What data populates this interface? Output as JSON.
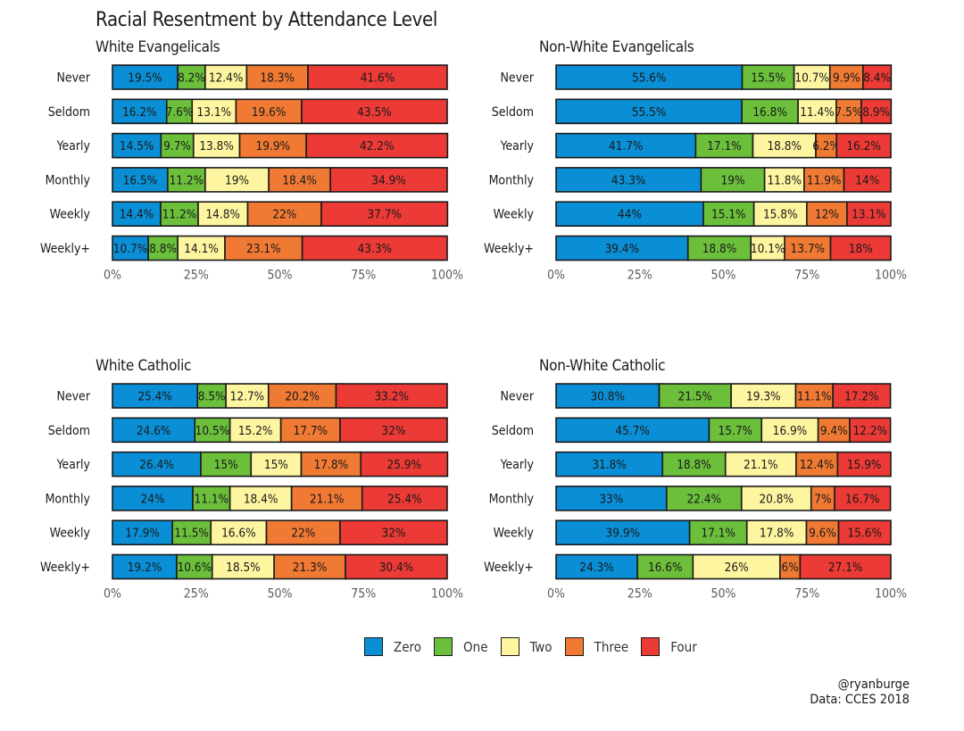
{
  "title": "Racial Resentment by Attendance Level",
  "colors": {
    "Zero": "#0A8FD6",
    "One": "#6BBF3B",
    "Two": "#FDF5A0",
    "Three": "#F07A33",
    "Four": "#EC3A36"
  },
  "legend": [
    {
      "label": "Zero",
      "color": "#0A8FD6"
    },
    {
      "label": "One",
      "color": "#6BBF3B"
    },
    {
      "label": "Two",
      "color": "#FDF5A0"
    },
    {
      "label": "Three",
      "color": "#F07A33"
    },
    {
      "label": "Four",
      "color": "#EC3A36"
    }
  ],
  "credit": {
    "handle": "@ryanburge",
    "source": "Data: CCES 2018"
  },
  "chart_data": [
    {
      "type": "bar",
      "title": "White Evangelicals",
      "orientation": "horizontal-stacked",
      "xlim": [
        0,
        100
      ],
      "xticks": [
        "0%",
        "25%",
        "50%",
        "75%",
        "100%"
      ],
      "categories": [
        "Never",
        "Seldom",
        "Yearly",
        "Monthly",
        "Weekly",
        "Weekly+"
      ],
      "series": [
        {
          "name": "Zero",
          "values": [
            19.5,
            16.2,
            14.5,
            16.5,
            14.4,
            10.7
          ],
          "labels": [
            "19.5%",
            "16.2%",
            "14.5%",
            "16.5%",
            "14.4%",
            "10.7%"
          ]
        },
        {
          "name": "One",
          "values": [
            8.2,
            7.6,
            9.7,
            11.2,
            11.2,
            8.8
          ],
          "labels": [
            "8.2%",
            "7.6%",
            "9.7%",
            "11.2%",
            "11.2%",
            "8.8%"
          ]
        },
        {
          "name": "Two",
          "values": [
            12.4,
            13.1,
            13.8,
            19,
            14.8,
            14.1
          ],
          "labels": [
            "12.4%",
            "13.1%",
            "13.8%",
            "19%",
            "14.8%",
            "14.1%"
          ]
        },
        {
          "name": "Three",
          "values": [
            18.3,
            19.6,
            19.9,
            18.4,
            22,
            23.1
          ],
          "labels": [
            "18.3%",
            "19.6%",
            "19.9%",
            "18.4%",
            "22%",
            "23.1%"
          ]
        },
        {
          "name": "Four",
          "values": [
            41.6,
            43.5,
            42.2,
            34.9,
            37.7,
            43.3
          ],
          "labels": [
            "41.6%",
            "43.5%",
            "42.2%",
            "34.9%",
            "37.7%",
            "43.3%"
          ]
        }
      ]
    },
    {
      "type": "bar",
      "title": "Non-White Evangelicals",
      "orientation": "horizontal-stacked",
      "xlim": [
        0,
        100
      ],
      "xticks": [
        "0%",
        "25%",
        "50%",
        "75%",
        "100%"
      ],
      "categories": [
        "Never",
        "Seldom",
        "Yearly",
        "Monthly",
        "Weekly",
        "Weekly+"
      ],
      "series": [
        {
          "name": "Zero",
          "values": [
            55.6,
            55.5,
            41.7,
            43.3,
            44,
            39.4
          ],
          "labels": [
            "55.6%",
            "55.5%",
            "41.7%",
            "43.3%",
            "44%",
            "39.4%"
          ]
        },
        {
          "name": "One",
          "values": [
            15.5,
            16.8,
            17.1,
            19,
            15.1,
            18.8
          ],
          "labels": [
            "15.5%",
            "16.8%",
            "17.1%",
            "19%",
            "15.1%",
            "18.8%"
          ]
        },
        {
          "name": "Two",
          "values": [
            10.7,
            11.4,
            18.8,
            11.8,
            15.8,
            10.1
          ],
          "labels": [
            "10.7%",
            "11.4%",
            "18.8%",
            "11.8%",
            "15.8%",
            "10.1%"
          ]
        },
        {
          "name": "Three",
          "values": [
            9.9,
            7.5,
            6.2,
            11.9,
            12,
            13.7
          ],
          "labels": [
            "9.9%",
            "7.5%",
            "6.2%",
            "11.9%",
            "12%",
            "13.7%"
          ]
        },
        {
          "name": "Four",
          "values": [
            8.4,
            8.9,
            16.2,
            14,
            13.1,
            18
          ],
          "labels": [
            "8.4%",
            "8.9%",
            "16.2%",
            "14%",
            "13.1%",
            "18%"
          ]
        }
      ]
    },
    {
      "type": "bar",
      "title": "White Catholic",
      "orientation": "horizontal-stacked",
      "xlim": [
        0,
        100
      ],
      "xticks": [
        "0%",
        "25%",
        "50%",
        "75%",
        "100%"
      ],
      "categories": [
        "Never",
        "Seldom",
        "Yearly",
        "Monthly",
        "Weekly",
        "Weekly+"
      ],
      "series": [
        {
          "name": "Zero",
          "values": [
            25.4,
            24.6,
            26.4,
            24,
            17.9,
            19.2
          ],
          "labels": [
            "25.4%",
            "24.6%",
            "26.4%",
            "24%",
            "17.9%",
            "19.2%"
          ]
        },
        {
          "name": "One",
          "values": [
            8.5,
            10.5,
            15,
            11.1,
            11.5,
            10.6
          ],
          "labels": [
            "8.5%",
            "10.5%",
            "15%",
            "11.1%",
            "11.5%",
            "10.6%"
          ]
        },
        {
          "name": "Two",
          "values": [
            12.7,
            15.2,
            15,
            18.4,
            16.6,
            18.5
          ],
          "labels": [
            "12.7%",
            "15.2%",
            "15%",
            "18.4%",
            "16.6%",
            "18.5%"
          ]
        },
        {
          "name": "Three",
          "values": [
            20.2,
            17.7,
            17.8,
            21.1,
            22,
            21.3
          ],
          "labels": [
            "20.2%",
            "17.7%",
            "17.8%",
            "21.1%",
            "22%",
            "21.3%"
          ]
        },
        {
          "name": "Four",
          "values": [
            33.2,
            32,
            25.9,
            25.4,
            32,
            30.4
          ],
          "labels": [
            "33.2%",
            "32%",
            "25.9%",
            "25.4%",
            "32%",
            "30.4%"
          ]
        }
      ]
    },
    {
      "type": "bar",
      "title": "Non-White Catholic",
      "orientation": "horizontal-stacked",
      "xlim": [
        0,
        100
      ],
      "xticks": [
        "0%",
        "25%",
        "50%",
        "75%",
        "100%"
      ],
      "categories": [
        "Never",
        "Seldom",
        "Yearly",
        "Monthly",
        "Weekly",
        "Weekly+"
      ],
      "series": [
        {
          "name": "Zero",
          "values": [
            30.8,
            45.7,
            31.8,
            33,
            39.9,
            24.3
          ],
          "labels": [
            "30.8%",
            "45.7%",
            "31.8%",
            "33%",
            "39.9%",
            "24.3%"
          ]
        },
        {
          "name": "One",
          "values": [
            21.5,
            15.7,
            18.8,
            22.4,
            17.1,
            16.6
          ],
          "labels": [
            "21.5%",
            "15.7%",
            "18.8%",
            "22.4%",
            "17.1%",
            "16.6%"
          ]
        },
        {
          "name": "Two",
          "values": [
            19.3,
            16.9,
            21.1,
            20.8,
            17.8,
            26
          ],
          "labels": [
            "19.3%",
            "16.9%",
            "21.1%",
            "20.8%",
            "17.8%",
            "26%"
          ]
        },
        {
          "name": "Three",
          "values": [
            11.1,
            9.4,
            12.4,
            7,
            9.6,
            6
          ],
          "labels": [
            "11.1%",
            "9.4%",
            "12.4%",
            "7%",
            "9.6%",
            "6%"
          ]
        },
        {
          "name": "Four",
          "values": [
            17.2,
            12.2,
            15.9,
            16.7,
            15.6,
            27.1
          ],
          "labels": [
            "17.2%",
            "12.2%",
            "15.9%",
            "16.7%",
            "15.6%",
            "27.1%"
          ]
        }
      ]
    }
  ]
}
